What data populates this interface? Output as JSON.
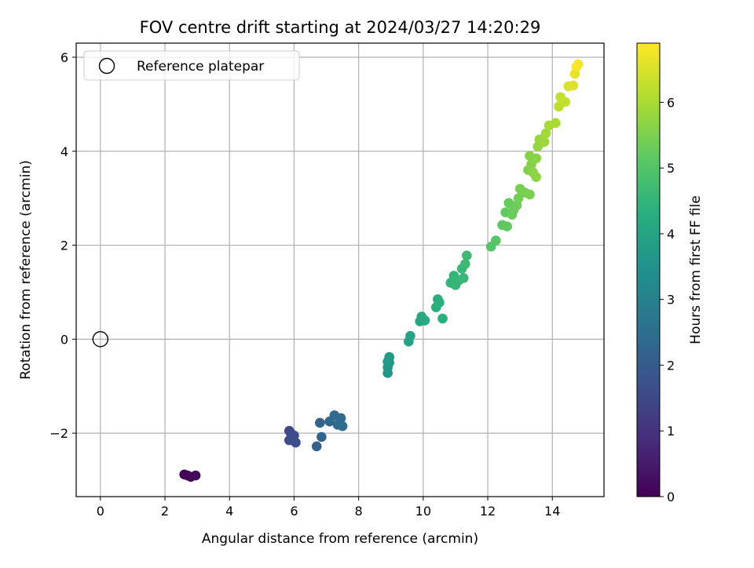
{
  "chart_data": {
    "type": "scatter",
    "title": "FOV centre drift starting at 2024/03/27 14:20:29",
    "xlabel": "Angular distance from reference (arcmin)",
    "ylabel": "Rotation from reference (arcmin)",
    "xlim": [
      -0.75,
      15.6
    ],
    "ylim": [
      -3.35,
      6.3
    ],
    "xticks": [
      0,
      2,
      4,
      6,
      8,
      10,
      12,
      14
    ],
    "yticks": [
      -2,
      0,
      2,
      4,
      6
    ],
    "xtick_labels": [
      "0",
      "2",
      "4",
      "6",
      "8",
      "10",
      "12",
      "14"
    ],
    "ytick_labels": [
      "−2",
      "0",
      "2",
      "4",
      "6"
    ],
    "grid": true,
    "legend": {
      "placement": "upper-left",
      "entries": [
        "Reference platepar"
      ]
    },
    "reference_point": {
      "x": 0,
      "y": 0,
      "label": "Reference platepar"
    },
    "colorbar": {
      "label": "Hours from first FF file",
      "colormap": "viridis",
      "range": [
        0,
        6.9
      ],
      "ticks": [
        0,
        1,
        2,
        3,
        4,
        5,
        6
      ],
      "tick_labels": [
        "0",
        "1",
        "2",
        "3",
        "4",
        "5",
        "6"
      ]
    },
    "points": [
      {
        "x": 2.6,
        "y": -2.88,
        "h": 0.05
      },
      {
        "x": 2.8,
        "y": -2.93,
        "h": 0.1
      },
      {
        "x": 2.95,
        "y": -2.9,
        "h": 0.15
      },
      {
        "x": 2.7,
        "y": -2.9,
        "h": 0.12
      },
      {
        "x": 5.85,
        "y": -1.95,
        "h": 1.5
      },
      {
        "x": 5.9,
        "y": -2.0,
        "h": 1.55
      },
      {
        "x": 6.0,
        "y": -2.05,
        "h": 1.6
      },
      {
        "x": 5.85,
        "y": -2.15,
        "h": 1.6
      },
      {
        "x": 6.05,
        "y": -2.2,
        "h": 1.65
      },
      {
        "x": 6.7,
        "y": -2.28,
        "h": 2.1
      },
      {
        "x": 6.85,
        "y": -2.08,
        "h": 2.2
      },
      {
        "x": 6.8,
        "y": -1.78,
        "h": 2.2
      },
      {
        "x": 7.1,
        "y": -1.75,
        "h": 2.3
      },
      {
        "x": 7.25,
        "y": -1.62,
        "h": 2.35
      },
      {
        "x": 7.35,
        "y": -1.82,
        "h": 2.4
      },
      {
        "x": 7.45,
        "y": -1.68,
        "h": 2.4
      },
      {
        "x": 7.5,
        "y": -1.85,
        "h": 2.45
      },
      {
        "x": 8.9,
        "y": -0.72,
        "h": 3.6
      },
      {
        "x": 8.9,
        "y": -0.6,
        "h": 3.65
      },
      {
        "x": 8.95,
        "y": -0.5,
        "h": 3.65
      },
      {
        "x": 8.95,
        "y": -0.38,
        "h": 3.7
      },
      {
        "x": 8.9,
        "y": -0.48,
        "h": 3.7
      },
      {
        "x": 9.55,
        "y": -0.05,
        "h": 3.95
      },
      {
        "x": 9.6,
        "y": 0.07,
        "h": 4.0
      },
      {
        "x": 9.9,
        "y": 0.38,
        "h": 4.1
      },
      {
        "x": 9.95,
        "y": 0.48,
        "h": 4.15
      },
      {
        "x": 10.05,
        "y": 0.4,
        "h": 4.15
      },
      {
        "x": 10.4,
        "y": 0.68,
        "h": 4.3
      },
      {
        "x": 10.45,
        "y": 0.85,
        "h": 4.3
      },
      {
        "x": 10.5,
        "y": 0.78,
        "h": 4.35
      },
      {
        "x": 10.6,
        "y": 0.44,
        "h": 4.35
      },
      {
        "x": 10.85,
        "y": 1.2,
        "h": 4.5
      },
      {
        "x": 10.95,
        "y": 1.35,
        "h": 4.5
      },
      {
        "x": 11.0,
        "y": 1.15,
        "h": 4.55
      },
      {
        "x": 11.1,
        "y": 1.25,
        "h": 4.55
      },
      {
        "x": 11.2,
        "y": 1.5,
        "h": 4.6
      },
      {
        "x": 11.25,
        "y": 1.3,
        "h": 4.6
      },
      {
        "x": 11.3,
        "y": 1.6,
        "h": 4.65
      },
      {
        "x": 11.35,
        "y": 1.78,
        "h": 4.7
      },
      {
        "x": 12.1,
        "y": 1.97,
        "h": 5.0
      },
      {
        "x": 12.25,
        "y": 2.1,
        "h": 5.05
      },
      {
        "x": 12.45,
        "y": 2.43,
        "h": 5.15
      },
      {
        "x": 12.6,
        "y": 2.4,
        "h": 5.2
      },
      {
        "x": 12.55,
        "y": 2.7,
        "h": 5.2
      },
      {
        "x": 12.65,
        "y": 2.9,
        "h": 5.25
      },
      {
        "x": 12.75,
        "y": 2.65,
        "h": 5.3
      },
      {
        "x": 12.8,
        "y": 2.75,
        "h": 5.3
      },
      {
        "x": 12.9,
        "y": 2.85,
        "h": 5.35
      },
      {
        "x": 12.95,
        "y": 3.0,
        "h": 5.4
      },
      {
        "x": 13.0,
        "y": 3.2,
        "h": 5.45
      },
      {
        "x": 13.15,
        "y": 3.12,
        "h": 5.45
      },
      {
        "x": 13.3,
        "y": 3.08,
        "h": 5.5
      },
      {
        "x": 13.25,
        "y": 3.6,
        "h": 5.55
      },
      {
        "x": 13.3,
        "y": 3.9,
        "h": 5.6
      },
      {
        "x": 13.35,
        "y": 3.72,
        "h": 5.6
      },
      {
        "x": 13.4,
        "y": 3.55,
        "h": 5.65
      },
      {
        "x": 13.5,
        "y": 3.85,
        "h": 5.65
      },
      {
        "x": 13.5,
        "y": 3.45,
        "h": 5.7
      },
      {
        "x": 13.55,
        "y": 4.1,
        "h": 5.75
      },
      {
        "x": 13.6,
        "y": 4.25,
        "h": 5.8
      },
      {
        "x": 13.75,
        "y": 4.2,
        "h": 5.85
      },
      {
        "x": 13.8,
        "y": 4.38,
        "h": 5.9
      },
      {
        "x": 13.9,
        "y": 4.55,
        "h": 5.95
      },
      {
        "x": 14.1,
        "y": 4.6,
        "h": 6.0
      },
      {
        "x": 14.2,
        "y": 4.95,
        "h": 6.2
      },
      {
        "x": 14.25,
        "y": 5.15,
        "h": 6.25
      },
      {
        "x": 14.4,
        "y": 5.05,
        "h": 6.3
      },
      {
        "x": 14.5,
        "y": 5.38,
        "h": 6.5
      },
      {
        "x": 14.65,
        "y": 5.4,
        "h": 6.55
      },
      {
        "x": 14.7,
        "y": 5.65,
        "h": 6.7
      },
      {
        "x": 14.75,
        "y": 5.8,
        "h": 6.8
      },
      {
        "x": 14.8,
        "y": 5.85,
        "h": 6.85
      }
    ]
  }
}
